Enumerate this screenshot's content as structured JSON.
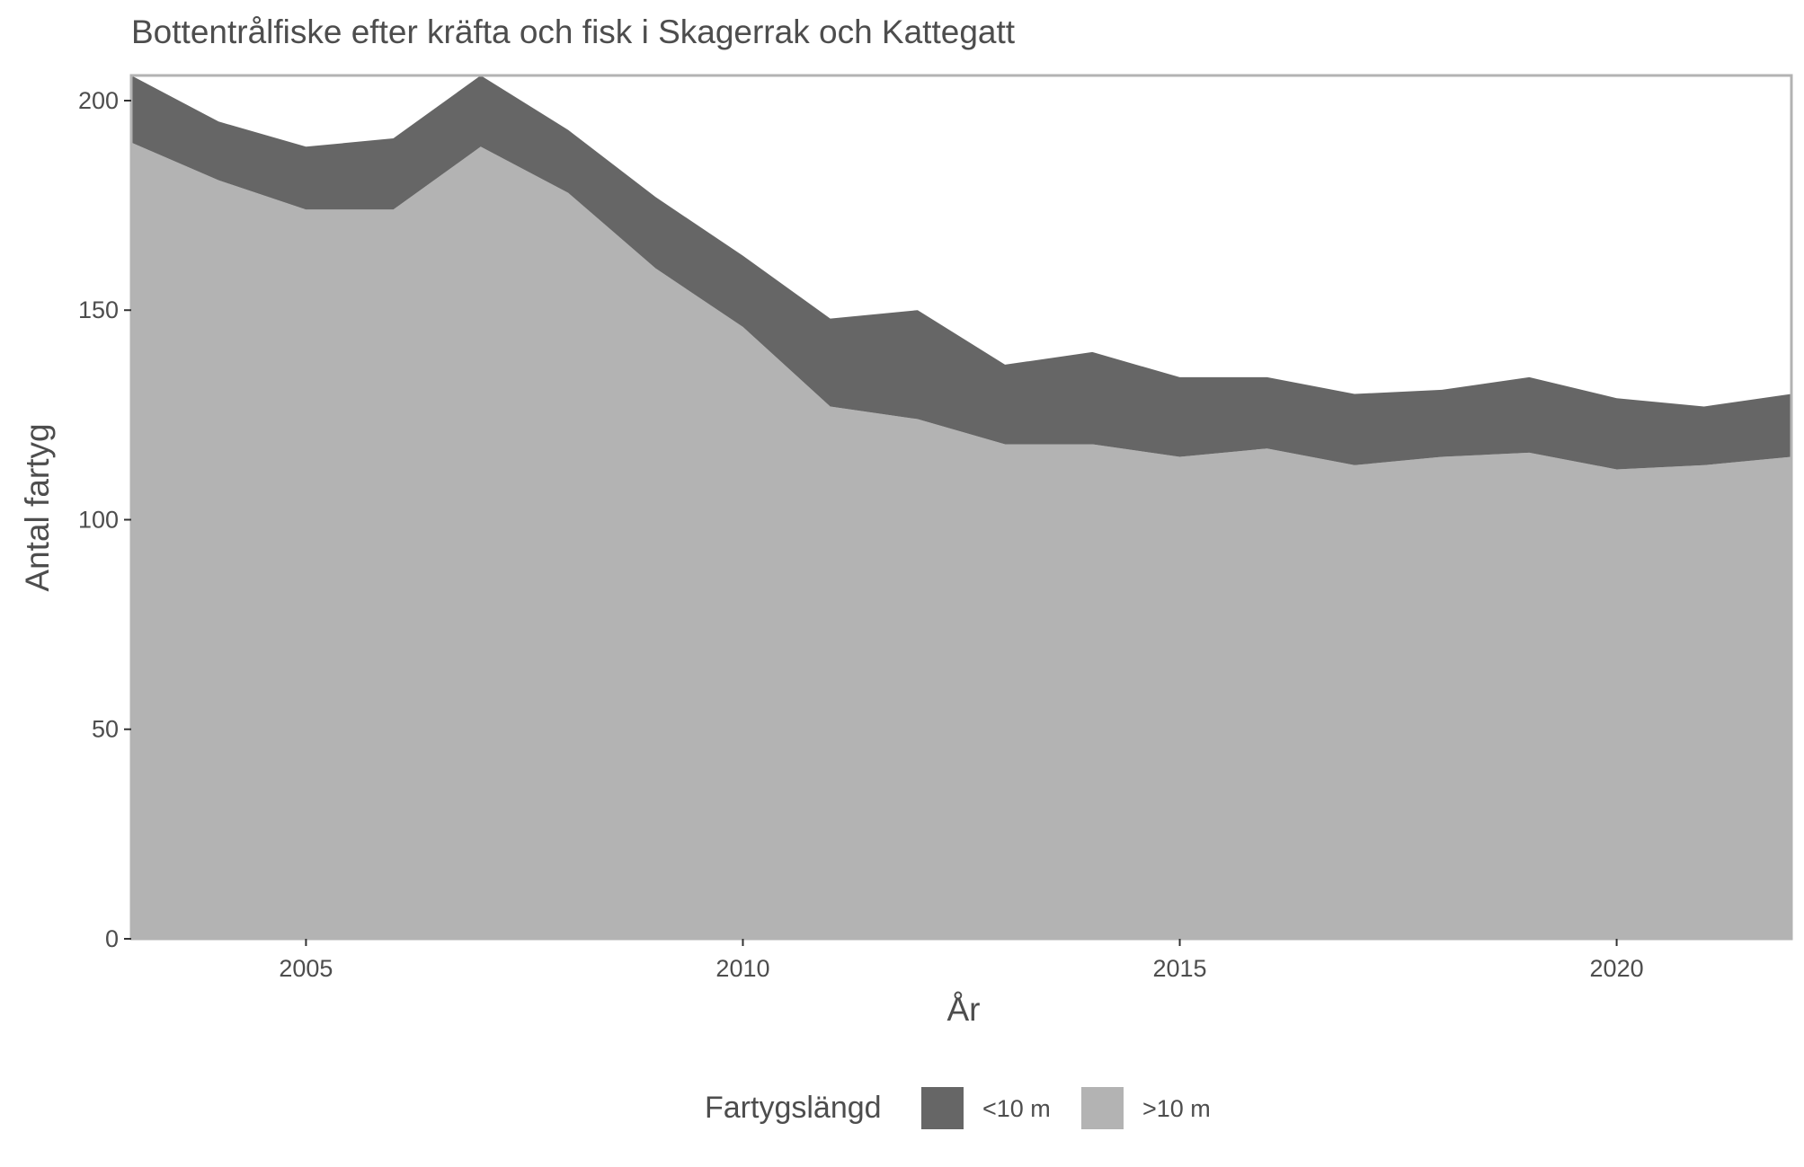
{
  "chart_data": {
    "type": "area",
    "stacked": true,
    "title": "Bottentrålfiske efter kräfta och fisk i Skagerrak och Kattegatt",
    "xlabel": "År",
    "ylabel": "Antal fartyg",
    "x": [
      2003,
      2004,
      2005,
      2006,
      2007,
      2008,
      2009,
      2010,
      2011,
      2012,
      2013,
      2014,
      2015,
      2016,
      2017,
      2018,
      2019,
      2020,
      2021,
      2022
    ],
    "xlim": [
      2003,
      2022
    ],
    "ylim": [
      0,
      206
    ],
    "xticks": [
      2005,
      2010,
      2015,
      2020
    ],
    "yticks": [
      0,
      50,
      100,
      150,
      200
    ],
    "grid": false,
    "legend": {
      "title": "Fartygslängd",
      "position": "bottom"
    },
    "series": [
      {
        "name": ">10 m",
        "color": "#b3b3b3",
        "values": [
          190,
          181,
          174,
          174,
          189,
          178,
          160,
          146,
          127,
          124,
          118,
          118,
          115,
          117,
          113,
          115,
          116,
          112,
          113,
          115
        ]
      },
      {
        "name": "<10 m",
        "color": "#666666",
        "values": [
          16,
          14,
          15,
          17,
          17,
          15,
          17,
          17,
          21,
          26,
          19,
          22,
          19,
          17,
          17,
          16,
          18,
          17,
          14,
          15
        ]
      }
    ],
    "legend_order": [
      "<10 m",
      ">10 m"
    ]
  }
}
